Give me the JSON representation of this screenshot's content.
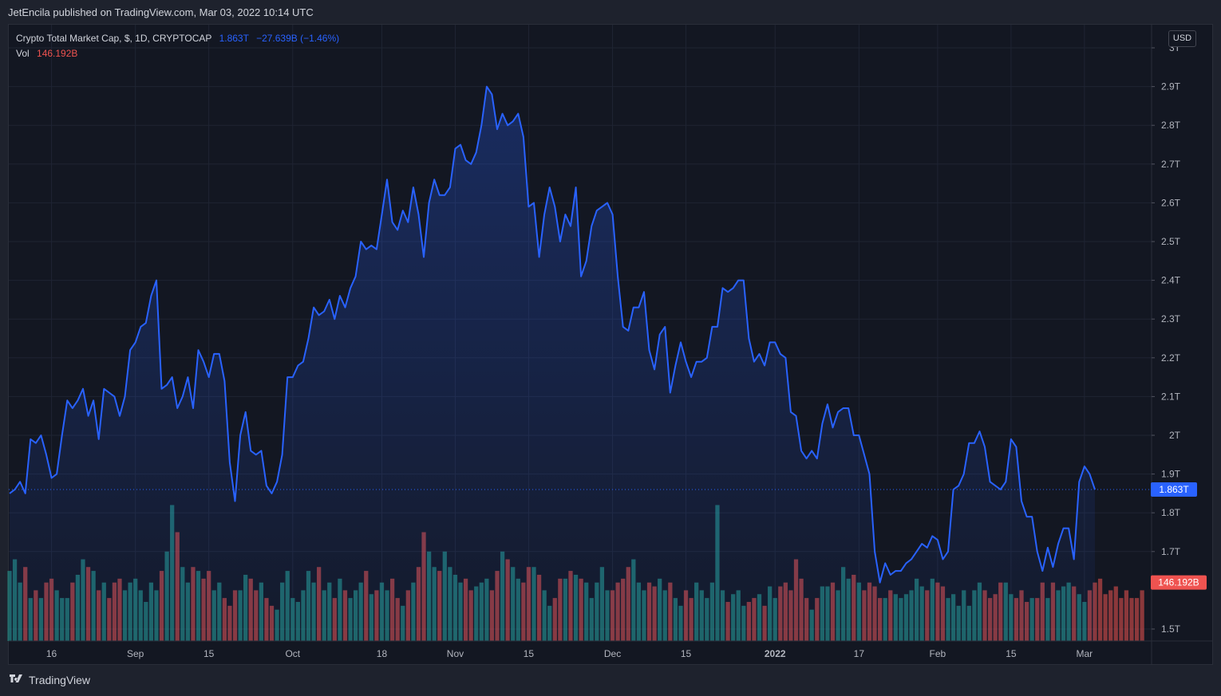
{
  "header": {
    "published": "JetEncila published on TradingView.com, Mar 03, 2022 10:14 UTC"
  },
  "legend": {
    "symbol": "Crypto Total Market Cap, $, 1D, CRYPTOCAP",
    "last": "1.863T",
    "change": "−27.639B (−1.46%)",
    "vol_label": "Vol",
    "vol_value": "146.192B"
  },
  "currency_button": "USD",
  "footer": {
    "brand": "TradingView"
  },
  "colors": {
    "line": "#2962ff",
    "vol_up": "#26a69a",
    "vol_down": "#ef5350",
    "background": "#131722"
  },
  "chart_data": {
    "type": "area",
    "title": "Crypto Total Market Cap, $, 1D, CRYPTOCAP",
    "y_axis": {
      "ticks": [
        {
          "value": 1.5,
          "label": "1.5T"
        },
        {
          "value": 1.7,
          "label": "1.7T"
        },
        {
          "value": 1.8,
          "label": "1.8T"
        },
        {
          "value": 1.9,
          "label": "1.9T"
        },
        {
          "value": 2.0,
          "label": "2T"
        },
        {
          "value": 2.1,
          "label": "2.1T"
        },
        {
          "value": 2.2,
          "label": "2.2T"
        },
        {
          "value": 2.3,
          "label": "2.3T"
        },
        {
          "value": 2.4,
          "label": "2.4T"
        },
        {
          "value": 2.5,
          "label": "2.5T"
        },
        {
          "value": 2.6,
          "label": "2.6T"
        },
        {
          "value": 2.7,
          "label": "2.7T"
        },
        {
          "value": 2.8,
          "label": "2.8T"
        },
        {
          "value": 2.9,
          "label": "2.9T"
        },
        {
          "value": 3.0,
          "label": "3T"
        }
      ],
      "range": [
        1.47,
        3.0
      ],
      "unit": "T USD"
    },
    "x_axis": {
      "ticks": [
        {
          "index": 8,
          "label": "16",
          "bold": false
        },
        {
          "index": 24,
          "label": "Sep",
          "bold": false
        },
        {
          "index": 38,
          "label": "15",
          "bold": false
        },
        {
          "index": 54,
          "label": "Oct",
          "bold": false
        },
        {
          "index": 71,
          "label": "18",
          "bold": false
        },
        {
          "index": 85,
          "label": "Nov",
          "bold": false
        },
        {
          "index": 99,
          "label": "15",
          "bold": false
        },
        {
          "index": 115,
          "label": "Dec",
          "bold": false
        },
        {
          "index": 129,
          "label": "15",
          "bold": false
        },
        {
          "index": 146,
          "label": "2022",
          "bold": true
        },
        {
          "index": 162,
          "label": "17",
          "bold": false
        },
        {
          "index": 177,
          "label": "Feb",
          "bold": false
        },
        {
          "index": 191,
          "label": "15",
          "bold": false
        },
        {
          "index": 205,
          "label": "Mar",
          "bold": false
        }
      ]
    },
    "price_label": "1.863T",
    "volume_label": "146.192B",
    "series": [
      {
        "name": "Crypto Total Market Cap",
        "values": [
          1.85,
          1.86,
          1.88,
          1.85,
          1.99,
          1.98,
          2.0,
          1.95,
          1.89,
          1.9,
          2.0,
          2.09,
          2.07,
          2.09,
          2.12,
          2.05,
          2.09,
          1.99,
          2.12,
          2.11,
          2.1,
          2.05,
          2.1,
          2.22,
          2.24,
          2.28,
          2.29,
          2.36,
          2.4,
          2.12,
          2.13,
          2.15,
          2.07,
          2.1,
          2.15,
          2.07,
          2.22,
          2.19,
          2.15,
          2.21,
          2.21,
          2.14,
          1.93,
          1.83,
          2.0,
          2.06,
          1.96,
          1.95,
          1.96,
          1.87,
          1.85,
          1.88,
          1.95,
          2.15,
          2.15,
          2.18,
          2.19,
          2.25,
          2.33,
          2.31,
          2.32,
          2.35,
          2.3,
          2.36,
          2.33,
          2.38,
          2.41,
          2.5,
          2.48,
          2.49,
          2.48,
          2.57,
          2.66,
          2.55,
          2.53,
          2.58,
          2.55,
          2.64,
          2.57,
          2.46,
          2.6,
          2.66,
          2.62,
          2.62,
          2.64,
          2.74,
          2.75,
          2.71,
          2.7,
          2.73,
          2.8,
          2.9,
          2.88,
          2.79,
          2.83,
          2.8,
          2.81,
          2.83,
          2.77,
          2.59,
          2.6,
          2.46,
          2.57,
          2.64,
          2.59,
          2.5,
          2.57,
          2.54,
          2.64,
          2.41,
          2.45,
          2.54,
          2.58,
          2.59,
          2.6,
          2.57,
          2.41,
          2.28,
          2.27,
          2.33,
          2.33,
          2.37,
          2.22,
          2.17,
          2.26,
          2.28,
          2.11,
          2.18,
          2.24,
          2.19,
          2.15,
          2.19,
          2.19,
          2.2,
          2.28,
          2.28,
          2.38,
          2.37,
          2.38,
          2.4,
          2.4,
          2.25,
          2.19,
          2.21,
          2.18,
          2.24,
          2.24,
          2.21,
          2.2,
          2.06,
          2.05,
          1.96,
          1.94,
          1.96,
          1.94,
          2.03,
          2.08,
          2.02,
          2.06,
          2.07,
          2.07,
          2.0,
          2.0,
          1.95,
          1.9,
          1.7,
          1.62,
          1.67,
          1.64,
          1.65,
          1.65,
          1.67,
          1.68,
          1.7,
          1.72,
          1.71,
          1.74,
          1.73,
          1.68,
          1.7,
          1.86,
          1.87,
          1.9,
          1.98,
          1.98,
          2.01,
          1.97,
          1.88,
          1.87,
          1.86,
          1.88,
          1.99,
          1.97,
          1.83,
          1.79,
          1.79,
          1.7,
          1.65,
          1.71,
          1.66,
          1.72,
          1.76,
          1.76,
          1.68,
          1.88,
          1.92,
          1.9,
          1.86
        ]
      },
      {
        "name": "Vol",
        "volumes": [
          1.65,
          1.68,
          1.62,
          1.66,
          1.58,
          1.6,
          1.58,
          1.62,
          1.63,
          1.6,
          1.58,
          1.58,
          1.62,
          1.64,
          1.68,
          1.66,
          1.65,
          1.6,
          1.62,
          1.58,
          1.62,
          1.63,
          1.6,
          1.62,
          1.63,
          1.6,
          1.57,
          1.62,
          1.6,
          1.65,
          1.7,
          1.82,
          1.75,
          1.66,
          1.62,
          1.66,
          1.65,
          1.63,
          1.65,
          1.6,
          1.62,
          1.58,
          1.56,
          1.6,
          1.6,
          1.64,
          1.63,
          1.6,
          1.62,
          1.58,
          1.56,
          1.55,
          1.62,
          1.65,
          1.58,
          1.57,
          1.6,
          1.65,
          1.62,
          1.66,
          1.6,
          1.62,
          1.58,
          1.63,
          1.6,
          1.58,
          1.6,
          1.62,
          1.65,
          1.59,
          1.6,
          1.62,
          1.6,
          1.63,
          1.58,
          1.56,
          1.6,
          1.62,
          1.66,
          1.75,
          1.7,
          1.66,
          1.65,
          1.7,
          1.66,
          1.64,
          1.62,
          1.63,
          1.6,
          1.61,
          1.62,
          1.63,
          1.6,
          1.65,
          1.7,
          1.68,
          1.66,
          1.63,
          1.62,
          1.66,
          1.66,
          1.64,
          1.6,
          1.56,
          1.58,
          1.63,
          1.63,
          1.65,
          1.64,
          1.63,
          1.62,
          1.58,
          1.62,
          1.66,
          1.6,
          1.6,
          1.62,
          1.63,
          1.66,
          1.68,
          1.62,
          1.6,
          1.62,
          1.61,
          1.63,
          1.6,
          1.62,
          1.58,
          1.56,
          1.6,
          1.58,
          1.62,
          1.6,
          1.58,
          1.62,
          1.82,
          1.6,
          1.57,
          1.59,
          1.6,
          1.56,
          1.57,
          1.58,
          1.59,
          1.56,
          1.61,
          1.58,
          1.61,
          1.62,
          1.6,
          1.68,
          1.63,
          1.58,
          1.55,
          1.58,
          1.61,
          1.61,
          1.62,
          1.6,
          1.66,
          1.63,
          1.64,
          1.62,
          1.6,
          1.62,
          1.61,
          1.58,
          1.58,
          1.6,
          1.59,
          1.58,
          1.59,
          1.6,
          1.63,
          1.61,
          1.6,
          1.63,
          1.62,
          1.61,
          1.58,
          1.59,
          1.56,
          1.6,
          1.56,
          1.6,
          1.62,
          1.6,
          1.58,
          1.59,
          1.62,
          1.62,
          1.59,
          1.58,
          1.6,
          1.57,
          1.58,
          1.58,
          1.62,
          1.58,
          1.62,
          1.6,
          1.61,
          1.62,
          1.61,
          1.59,
          1.57,
          1.6,
          1.62,
          1.63,
          1.59,
          1.6,
          1.61,
          1.58,
          1.6,
          1.58,
          1.58,
          1.6
        ]
      }
    ]
  }
}
